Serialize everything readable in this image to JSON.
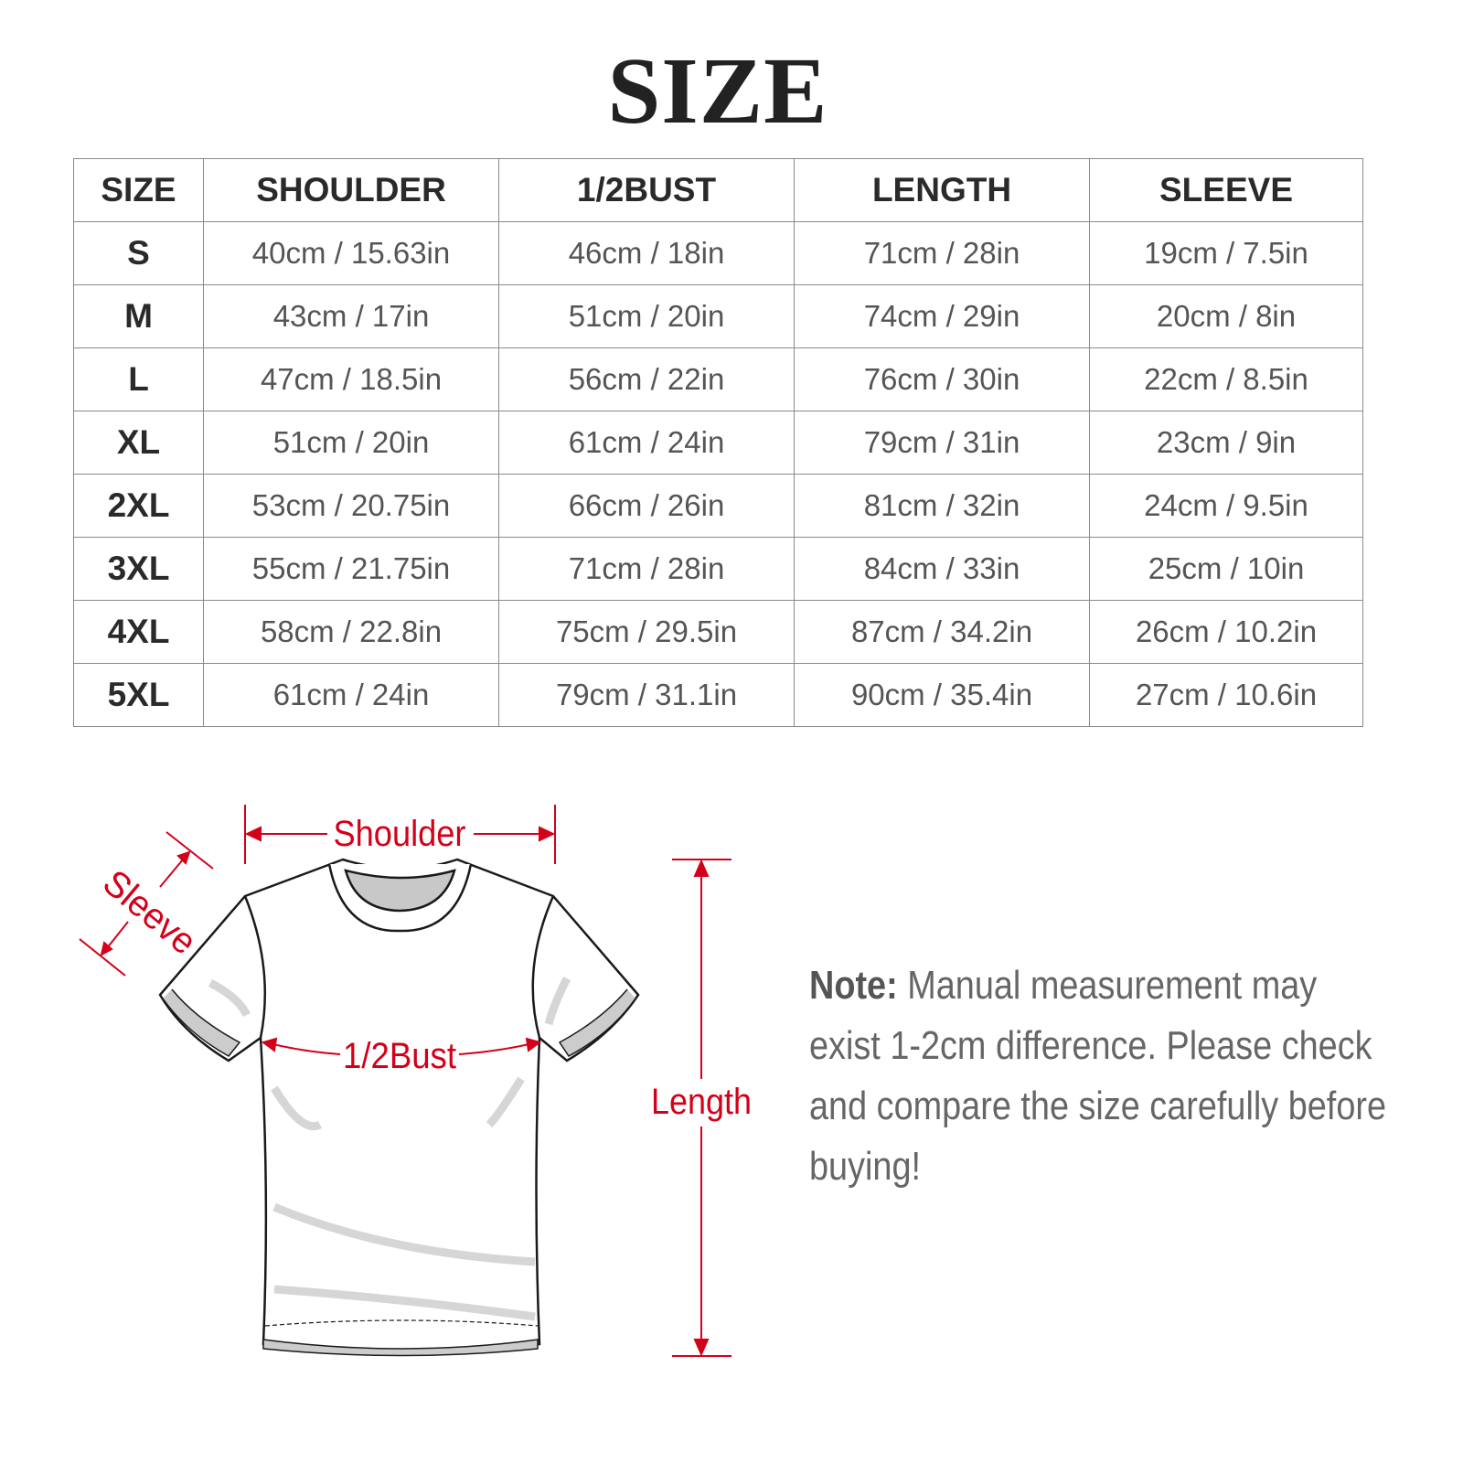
{
  "title": "SIZE",
  "table": {
    "headers": [
      "SIZE",
      "SHOULDER",
      "1/2BUST",
      "LENGTH",
      "SLEEVE"
    ],
    "rows": [
      [
        "S",
        "40cm / 15.63in",
        "46cm / 18in",
        "71cm / 28in",
        "19cm / 7.5in"
      ],
      [
        "M",
        "43cm / 17in",
        "51cm / 20in",
        "74cm / 29in",
        "20cm / 8in"
      ],
      [
        "L",
        "47cm / 18.5in",
        "56cm / 22in",
        "76cm / 30in",
        "22cm / 8.5in"
      ],
      [
        "XL",
        "51cm / 20in",
        "61cm / 24in",
        "79cm / 31in",
        "23cm / 9in"
      ],
      [
        "2XL",
        "53cm / 20.75in",
        "66cm / 26in",
        "81cm / 32in",
        "24cm / 9.5in"
      ],
      [
        "3XL",
        "55cm / 21.75in",
        "71cm / 28in",
        "84cm / 33in",
        "25cm / 10in"
      ],
      [
        "4XL",
        "58cm / 22.8in",
        "75cm / 29.5in",
        "87cm / 34.2in",
        "26cm / 10.2in"
      ],
      [
        "5XL",
        "61cm / 24in",
        "79cm / 31.1in",
        "90cm / 35.4in",
        "27cm / 10.6in"
      ]
    ]
  },
  "diagram": {
    "shoulder": "Shoulder",
    "sleeve": "Sleeve",
    "bust": "1/2Bust",
    "length": "Length",
    "accent": "#d40019"
  },
  "note": {
    "label": "Note:",
    "text": " Manual measurement may exist 1-2cm difference. Please check and compare the size carefully before buying!"
  }
}
